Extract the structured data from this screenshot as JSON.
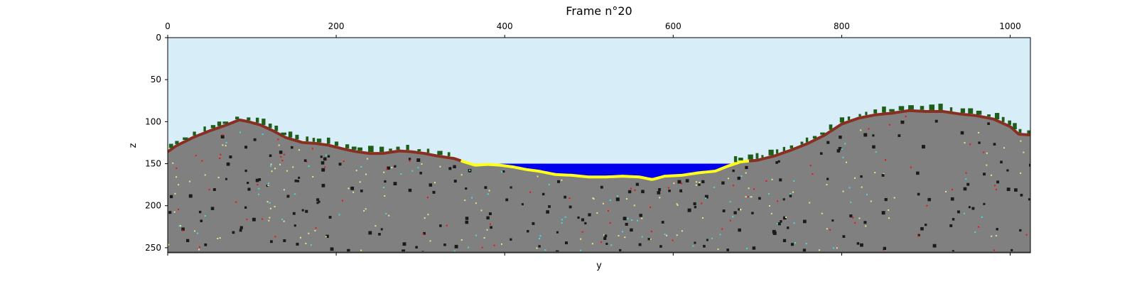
{
  "chart_data": {
    "type": "heatmap",
    "title": "Frame n°20",
    "xlabel": "y",
    "ylabel": "z",
    "xlim": [
      0,
      1024
    ],
    "ylim": [
      256,
      0
    ],
    "x_axis_position": "top",
    "x_ticks": [
      0,
      200,
      400,
      600,
      800,
      1000
    ],
    "y_ticks": [
      0,
      50,
      100,
      150,
      200,
      250
    ],
    "grid": false,
    "colors": {
      "sky": "#d7edf7",
      "rock": "#808080",
      "topsoil": "#8b2e22",
      "vegetation": "#1f5e1a",
      "sand": "#ffff1a",
      "water": "#0000ee",
      "speck_dark": "#1a1a1a",
      "speck_yellow": "#e6e68a",
      "speck_red": "#ee1111",
      "speck_cyan": "#44dddd"
    },
    "water_level_z": 150,
    "surface_profile": {
      "y": [
        0,
        10,
        30,
        50,
        70,
        85,
        95,
        110,
        125,
        140,
        160,
        175,
        190,
        210,
        225,
        240,
        255,
        275,
        290,
        305,
        320,
        340,
        355,
        365,
        380,
        395,
        410,
        425,
        440,
        460,
        480,
        500,
        520,
        540,
        560,
        575,
        590,
        610,
        630,
        650,
        665,
        680,
        700,
        720,
        740,
        760,
        780,
        800,
        820,
        840,
        860,
        880,
        900,
        920,
        940,
        960,
        980,
        1000,
        1010,
        1024
      ],
      "z": [
        135,
        128,
        118,
        110,
        103,
        97,
        99,
        103,
        110,
        118,
        124,
        125,
        127,
        132,
        135,
        137,
        137,
        134,
        135,
        137,
        140,
        143,
        148,
        151,
        150,
        151,
        153,
        156,
        158,
        162,
        163,
        165,
        165,
        164,
        165,
        168,
        164,
        163,
        160,
        158,
        152,
        147,
        145,
        140,
        133,
        125,
        115,
        102,
        95,
        91,
        89,
        86,
        87,
        87,
        90,
        92,
        96,
        105,
        114,
        115
      ]
    }
  }
}
